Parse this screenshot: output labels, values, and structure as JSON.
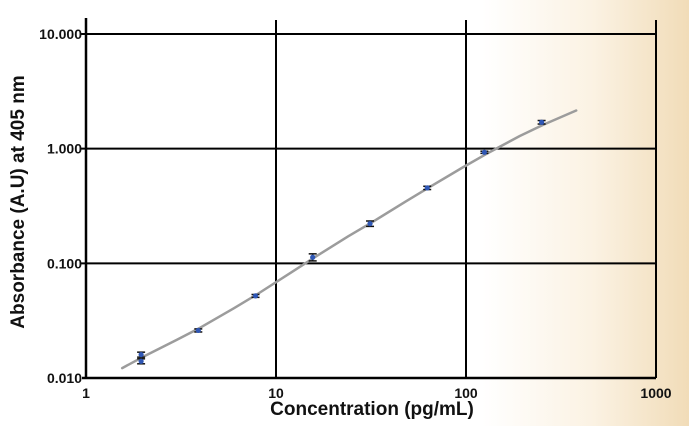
{
  "chart_data": {
    "type": "scatter",
    "xlabel": "Concentration (pg/mL)",
    "ylabel": "Absorbance (A.U) at 405 nm",
    "x_scale": "log",
    "y_scale": "log",
    "xlim": [
      1,
      1000
    ],
    "ylim": [
      0.01,
      10
    ],
    "x_ticks": [
      "1",
      "10",
      "100",
      "1000"
    ],
    "y_ticks": [
      "0.010",
      "0.100",
      "1.000",
      "10.000"
    ],
    "grid": true,
    "points": [
      {
        "x": 1.95,
        "y": 0.016,
        "err": 0.0008
      },
      {
        "x": 1.95,
        "y": 0.014,
        "err": 0.0007
      },
      {
        "x": 3.9,
        "y": 0.026,
        "err": 0.0008
      },
      {
        "x": 7.8,
        "y": 0.052,
        "err": 0.0015
      },
      {
        "x": 15.6,
        "y": 0.113,
        "err": 0.008
      },
      {
        "x": 31.25,
        "y": 0.222,
        "err": 0.012
      },
      {
        "x": 62.5,
        "y": 0.455,
        "err": 0.015
      },
      {
        "x": 125,
        "y": 0.93,
        "err": 0.02
      },
      {
        "x": 250,
        "y": 1.7,
        "err": 0.06
      }
    ],
    "fit_curve": [
      [
        1.55,
        0.0122
      ],
      [
        2,
        0.0153
      ],
      [
        3,
        0.0215
      ],
      [
        4,
        0.0275
      ],
      [
        6,
        0.0405
      ],
      [
        8,
        0.054
      ],
      [
        12,
        0.083
      ],
      [
        16,
        0.113
      ],
      [
        24,
        0.172
      ],
      [
        32,
        0.228
      ],
      [
        48,
        0.345
      ],
      [
        64,
        0.46
      ],
      [
        96,
        0.685
      ],
      [
        128,
        0.9
      ],
      [
        192,
        1.29
      ],
      [
        256,
        1.62
      ],
      [
        380,
        2.15
      ]
    ],
    "colors": {
      "marker": "#2f57b5",
      "curve": "#9c9c9c",
      "grid": "#000000",
      "errorbar": "#111111"
    }
  }
}
